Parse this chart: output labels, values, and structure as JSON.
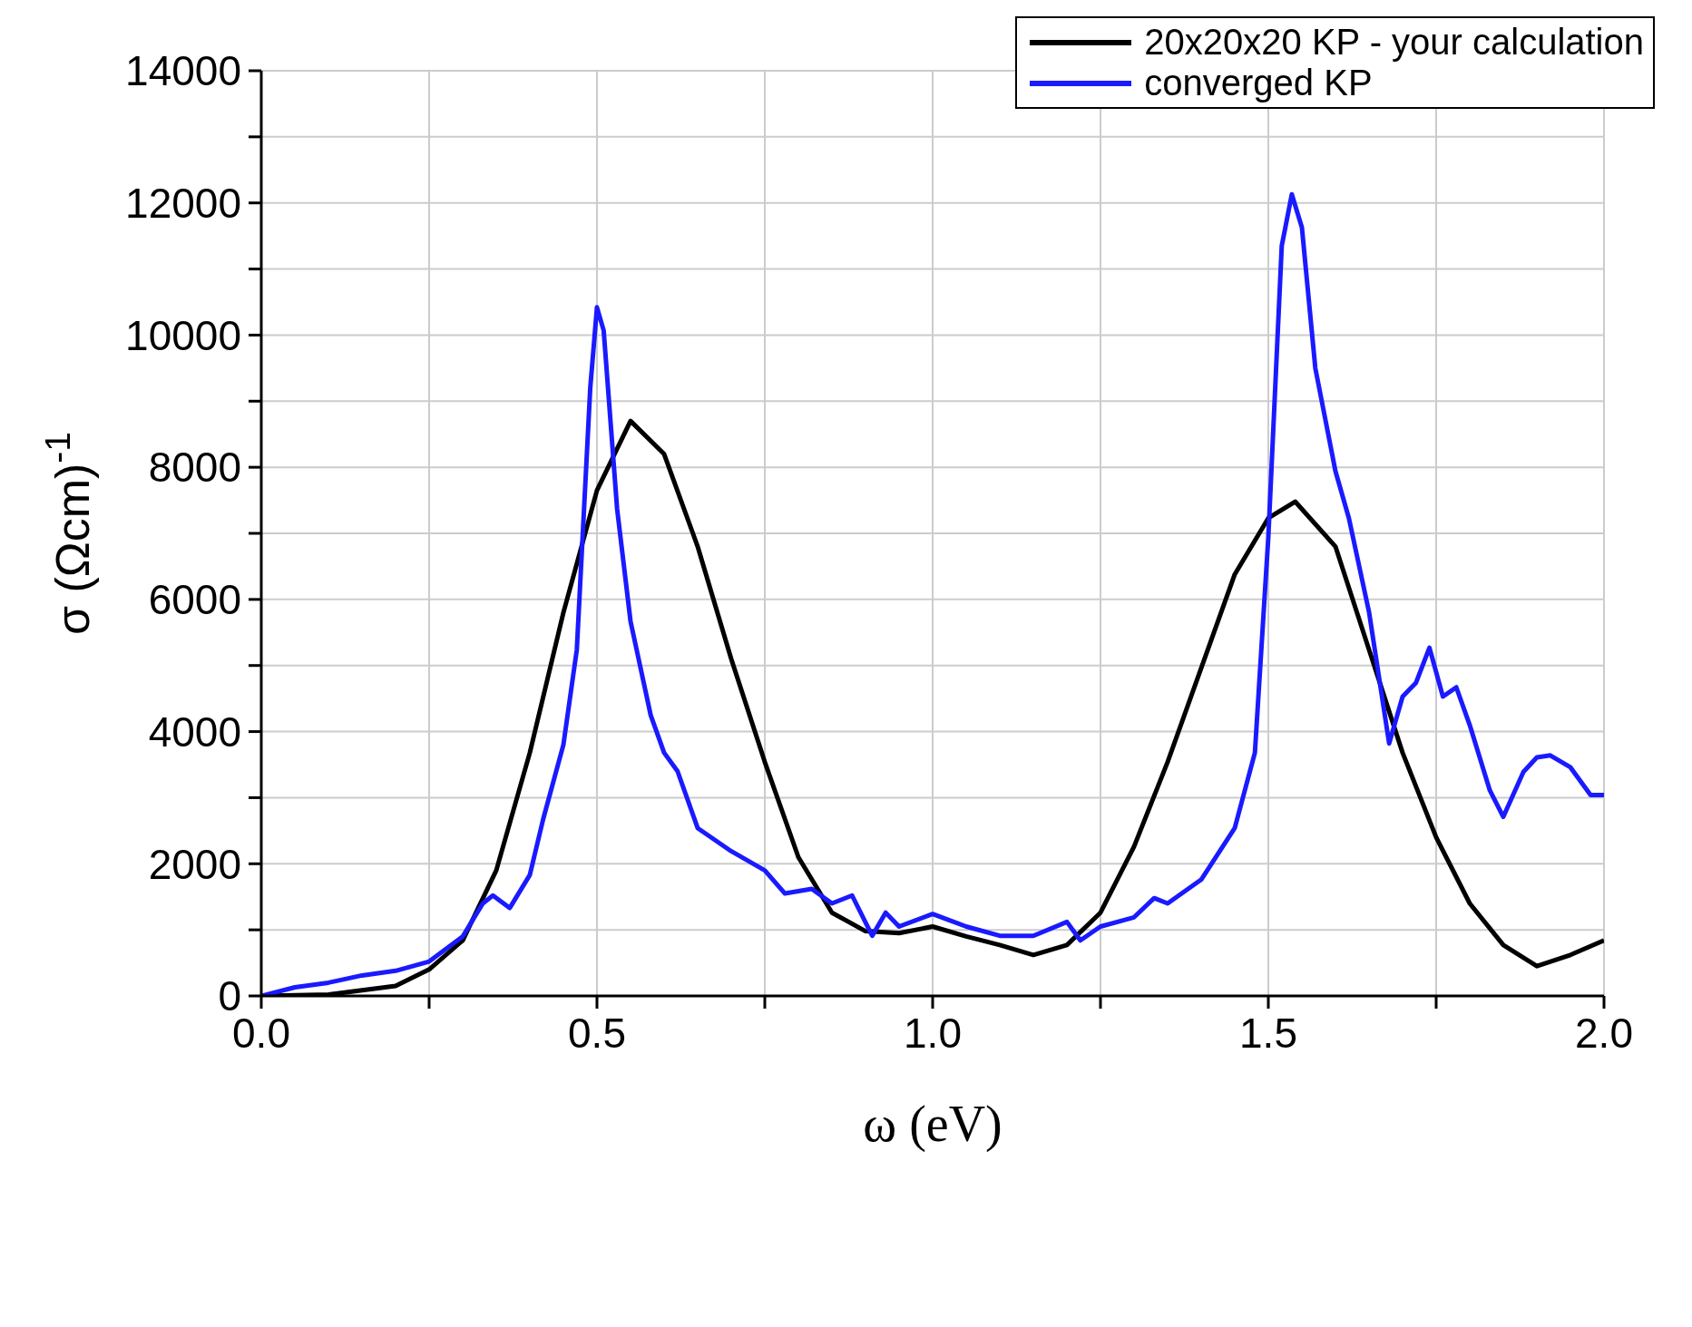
{
  "chart_data": {
    "type": "line",
    "xlabel": "ω (eV)",
    "ylabel": "σ (Ωcm)$^{-1}$",
    "xlim": [
      0,
      2
    ],
    "xticks": [
      {
        "value": 0,
        "label": "0.0"
      },
      {
        "value": 0.25,
        "label": null
      },
      {
        "value": 0.5,
        "label": "0.5"
      },
      {
        "value": 0.75,
        "label": null
      },
      {
        "value": 1,
        "label": "1.0"
      },
      {
        "value": 1.25,
        "label": null
      },
      {
        "value": 1.5,
        "label": "1.5"
      },
      {
        "value": 1.75,
        "label": null
      },
      {
        "value": 2,
        "label": "2.0"
      }
    ],
    "ylim": [
      0,
      14000
    ],
    "yticks": [
      0,
      {
        "value": 1000,
        "label": null
      },
      2000,
      {
        "value": 3000,
        "label": null
      },
      4000,
      {
        "value": 5000,
        "label": null
      },
      6000,
      {
        "value": 7000,
        "label": null
      },
      8000,
      {
        "value": 9000,
        "label": null
      },
      10000,
      {
        "value": 11000,
        "label": null
      },
      12000,
      {
        "value": 13000,
        "label": null
      },
      14000
    ],
    "grid": true,
    "legend": "top right",
    "marker": "none",
    "line_style": "solid",
    "series": [
      {
        "name": "20x20x20 KP - your calculation",
        "color": "#000000",
        "x": [
          0,
          0.1,
          0.2,
          0.25,
          0.3,
          0.35,
          0.4,
          0.45,
          0.5,
          0.55,
          0.6,
          0.65,
          0.7,
          0.75,
          0.8,
          0.85,
          0.9,
          0.95,
          1,
          1.05,
          1.1,
          1.15,
          1.2,
          1.25,
          1.3,
          1.35,
          1.4,
          1.45,
          1.5,
          1.54,
          1.6,
          1.65,
          1.7,
          1.75,
          1.8,
          1.85,
          1.9,
          1.95,
          2
        ],
        "values": [
          0,
          20,
          150,
          400,
          840,
          1900,
          3680,
          5800,
          7650,
          8700,
          8200,
          6800,
          5100,
          3540,
          2100,
          1260,
          980,
          950,
          1050,
          900,
          770,
          620,
          770,
          1260,
          2260,
          3540,
          4960,
          6380,
          7230,
          7480,
          6800,
          5240,
          3680,
          2400,
          1400,
          770,
          450,
          620,
          840
        ]
      },
      {
        "name": "converged KP",
        "color": "#1a1aff",
        "x": [
          0,
          0.05,
          0.1,
          0.15,
          0.2,
          0.25,
          0.3,
          0.33,
          0.345,
          0.37,
          0.4,
          0.42,
          0.45,
          0.47,
          0.49,
          0.5,
          0.51,
          0.53,
          0.55,
          0.58,
          0.6,
          0.62,
          0.65,
          0.7,
          0.75,
          0.78,
          0.82,
          0.85,
          0.88,
          0.91,
          0.93,
          0.95,
          1,
          1.05,
          1.1,
          1.15,
          1.2,
          1.22,
          1.25,
          1.3,
          1.33,
          1.35,
          1.4,
          1.45,
          1.48,
          1.5,
          1.52,
          1.535,
          1.55,
          1.57,
          1.6,
          1.62,
          1.65,
          1.68,
          1.7,
          1.72,
          1.74,
          1.76,
          1.78,
          1.8,
          1.83,
          1.85,
          1.88,
          1.9,
          1.92,
          1.95,
          1.98,
          2
        ],
        "values": [
          0,
          130,
          200,
          310,
          380,
          520,
          900,
          1400,
          1520,
          1330,
          1830,
          2680,
          3800,
          5240,
          9200,
          10420,
          10070,
          7370,
          5670,
          4250,
          3680,
          3400,
          2540,
          2190,
          1900,
          1550,
          1620,
          1400,
          1520,
          910,
          1260,
          1050,
          1240,
          1050,
          910,
          910,
          1120,
          840,
          1050,
          1190,
          1480,
          1400,
          1760,
          2540,
          3680,
          6940,
          11350,
          12130,
          11630,
          9500,
          7940,
          7230,
          5810,
          3820,
          4530,
          4740,
          5270,
          4530,
          4670,
          4100,
          3110,
          2710,
          3390,
          3610,
          3640,
          3460,
          3040,
          3040
        ]
      }
    ]
  }
}
